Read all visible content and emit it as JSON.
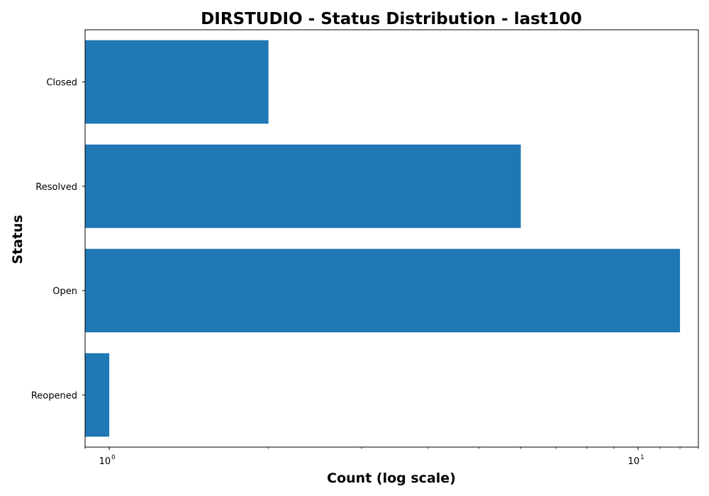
{
  "chart_data": {
    "type": "bar",
    "orientation": "horizontal",
    "title": "DIRSTUDIO - Status Distribution - last100",
    "xlabel": "Count (log scale)",
    "ylabel": "Status",
    "x_scale": "log",
    "xlim": [
      0.9,
      13
    ],
    "x_ticks": [
      {
        "base": "10",
        "exp": "0",
        "value": 1
      },
      {
        "base": "10",
        "exp": "1",
        "value": 10
      }
    ],
    "categories": [
      "Closed",
      "Resolved",
      "Open",
      "Reopened"
    ],
    "values": [
      2,
      6,
      12,
      1
    ],
    "bar_color": "#1f77b4",
    "grid": false,
    "legend": "none"
  }
}
